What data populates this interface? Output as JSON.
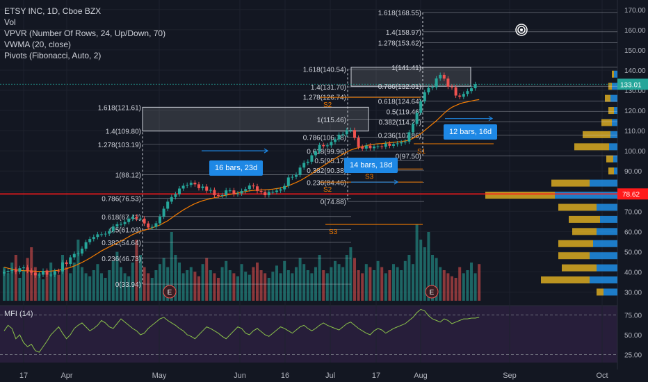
{
  "legend": {
    "title": "ETSY INC, 1D, Cboe BZX",
    "vol": "Vol",
    "vpvr": "VPVR (Number Of Rows, 24, Up/Down, 70)",
    "vwma": "VWMA (20, close)",
    "pivots": "Pivots (Fibonacci, Auto, 2)"
  },
  "mfi_label": "MFI (14)",
  "colors": {
    "bg": "#131722",
    "up": "#26a69a",
    "down": "#ef5350",
    "vwma": "#f57c00",
    "fib": "#d1d4dc",
    "pivot": "#f57c00",
    "redline": "#ff1a1a",
    "blue": "#1e88e5",
    "vpvr_up": "#2196f3",
    "vpvr_down": "#e6b422",
    "mfi": "#8bc34a",
    "grid": "#1e222d"
  },
  "chart_data": {
    "type": "candlestick",
    "price_axis": {
      "ticks": [
        "170.00",
        "160.00",
        "150.00",
        "140.00",
        "130.00",
        "120.00",
        "110.00",
        "100.00",
        "90.00",
        "80.00",
        "70.00",
        "60.00",
        "50.00",
        "40.00",
        "30.00"
      ],
      "range": [
        25,
        172
      ],
      "current_price": "133.01",
      "red_line_price": "78.62"
    },
    "mfi_axis": {
      "ticks": [
        "75.00",
        "50.00",
        "25.00"
      ],
      "range": [
        15,
        85
      ]
    },
    "x_axis_labels": [
      "17",
      "Apr",
      "May",
      "Jun",
      "16",
      "Jul",
      "17",
      "Aug",
      "Sep",
      "Oct"
    ],
    "prices": [
      40,
      40.5,
      41,
      40,
      41.8,
      42.2,
      40.6,
      39.6,
      38.3,
      38.6,
      40.5,
      38.6,
      38.6,
      40.4,
      40.2,
      44.7,
      43.9,
      47.2,
      48.9,
      49.1,
      51.5,
      54.7,
      56.3,
      57.3,
      58.6,
      58.6,
      58.9,
      60.2,
      62.5,
      63.6,
      63.7,
      64.7,
      66.4,
      67.3,
      66.4,
      66.4,
      64,
      62,
      62.3,
      64.1,
      67.4,
      71.3,
      74.8,
      77.1,
      78.5,
      81.3,
      82.7,
      83.1,
      84.2,
      83.4,
      81.5,
      82.3,
      80.2,
      80.6,
      78,
      77.8,
      78,
      80.4,
      80.4,
      78.5,
      78.9,
      80.1,
      81,
      82.8,
      82.4,
      80.1,
      79.6,
      78,
      79.6,
      79.6,
      80.3,
      80.9,
      82.6,
      86.8,
      87.1,
      88.1,
      91.7,
      94,
      94.6,
      97.8,
      99.7,
      102.8,
      102.3,
      102.7,
      104.4,
      105.7,
      108,
      108.2,
      110.2,
      110.3,
      106.4,
      101.9,
      101.1,
      102.6,
      101.3,
      102.1,
      102.2,
      102,
      103.6,
      102.5,
      103.3,
      103.7,
      104.2,
      104.6,
      109.2,
      113.3,
      118.8,
      124.6,
      129,
      131.2,
      131.5,
      135.9,
      137.6,
      135.8,
      131.8,
      131.5,
      127.4,
      126.8,
      128.2,
      129.6,
      131,
      133
    ],
    "volume": [
      22,
      18,
      25,
      30,
      15,
      20,
      28,
      35,
      22,
      18,
      14,
      20,
      25,
      19,
      17,
      30,
      22,
      18,
      25,
      40,
      22,
      18,
      16,
      20,
      24,
      18,
      15,
      20,
      26,
      32,
      22,
      18,
      16,
      25,
      40,
      30,
      22,
      18,
      15,
      20,
      24,
      28,
      22,
      45,
      30,
      25,
      18,
      20,
      22,
      19,
      16,
      24,
      28,
      20,
      18,
      15,
      22,
      26,
      20,
      18,
      16,
      24,
      19,
      17,
      22,
      25,
      20,
      18,
      15,
      19,
      23,
      18,
      26,
      20,
      18,
      22,
      28,
      24,
      20,
      18,
      22,
      30,
      20,
      18,
      22,
      26,
      24,
      22,
      30,
      35,
      28,
      20,
      18,
      24,
      22,
      20,
      26,
      22,
      18,
      20,
      24,
      22,
      20,
      26,
      30,
      24,
      50,
      40,
      35,
      45,
      30,
      28,
      22,
      20,
      18,
      16,
      15,
      22,
      18,
      20,
      25,
      18,
      24
    ],
    "mfi": [
      55,
      62,
      58,
      45,
      50,
      40,
      35,
      38,
      30,
      28,
      35,
      42,
      50,
      55,
      60,
      52,
      45,
      50,
      58,
      62,
      65,
      60,
      55,
      58,
      62,
      68,
      65,
      60,
      58,
      64,
      70,
      66,
      62,
      58,
      55,
      50,
      52,
      58,
      62,
      66,
      70,
      72,
      68,
      65,
      62,
      58,
      55,
      50,
      48,
      45,
      50,
      55,
      60,
      58,
      55,
      52,
      48,
      45,
      50,
      55,
      60,
      58,
      52,
      50,
      55,
      58,
      54,
      50,
      48,
      52,
      56,
      60,
      58,
      55,
      52,
      56,
      60,
      62,
      58,
      55,
      58,
      62,
      65,
      62,
      60,
      58,
      56,
      60,
      64,
      66,
      62,
      58,
      55,
      52,
      50,
      55,
      58,
      56,
      52,
      55,
      58,
      60,
      62,
      64,
      68,
      72,
      78,
      82,
      80,
      74,
      70,
      68,
      66,
      70,
      68,
      64,
      66,
      68,
      70,
      70,
      71,
      71,
      72
    ],
    "vwma": [
      42.3,
      41.8,
      41.4,
      41,
      40.8,
      40.6,
      40.5,
      40.5,
      40.3,
      40.3,
      40.3,
      40.2,
      40.4,
      40.6,
      40.8,
      41.2,
      41.6,
      42.2,
      42.9,
      43.8,
      44.7,
      45.7,
      46.8,
      48,
      49.2,
      50.4,
      51.4,
      52.4,
      53.3,
      54.3,
      55.3,
      56.3,
      57.4,
      58.5,
      59.3,
      60.1,
      60.6,
      61.2,
      61.8,
      62.5,
      63.2,
      64.3,
      65.3,
      66.7,
      68.1,
      69.4,
      70.7,
      71.8,
      72.9,
      73.8,
      74.6,
      75.3,
      75.8,
      76.3,
      76.7,
      77.1,
      77.6,
      78,
      78.4,
      78.7,
      79.1,
      79.5,
      79.8,
      80.2,
      80.4,
      80.5,
      80.6,
      80.7,
      80.8,
      81,
      81.3,
      81.6,
      82,
      82.7,
      83.5,
      84.3,
      85.2,
      86.3,
      87.5,
      88.7,
      90,
      91.4,
      92.6,
      93.8,
      95,
      96.2,
      97.3,
      98.4,
      99.4,
      100.4,
      101,
      101.6,
      102.1,
      102.6,
      103,
      103.3,
      103.5,
      103.6,
      103.8,
      104,
      104.2,
      104.4,
      104.6,
      104.9,
      105.3,
      106.2,
      107.2,
      108.5,
      110.1,
      111.7,
      113.3,
      114.9,
      116.7,
      118.6,
      120.3,
      121.6,
      122.5,
      123.3,
      123.9,
      124.3,
      124.7,
      125.1,
      125.4
    ],
    "vpvr": [
      {
        "price": "30.00",
        "up": 0.2,
        "down": 0.1
      },
      {
        "price": "36.00",
        "up": 0.4,
        "down": 0.7
      },
      {
        "price": "42.00",
        "up": 0.3,
        "down": 0.5
      },
      {
        "price": "48.00",
        "up": 0.4,
        "down": 0.45
      },
      {
        "price": "54.00",
        "up": 0.35,
        "down": 0.5
      },
      {
        "price": "60.00",
        "up": 0.3,
        "down": 0.35
      },
      {
        "price": "66.00",
        "up": 0.25,
        "down": 0.45
      },
      {
        "price": "72.00",
        "up": 0.3,
        "down": 0.55
      },
      {
        "price": "78.00",
        "up": 0.9,
        "down": 1
      },
      {
        "price": "84.00",
        "up": 0.4,
        "down": 0.55
      },
      {
        "price": "90.00",
        "up": 0.05,
        "down": 0.08
      },
      {
        "price": "96.00",
        "up": 0.06,
        "down": 0.1
      },
      {
        "price": "102.00",
        "up": 0.12,
        "down": 0.5
      },
      {
        "price": "108.00",
        "up": 0.1,
        "down": 0.4
      },
      {
        "price": "114.00",
        "up": 0.08,
        "down": 0.15
      },
      {
        "price": "120.00",
        "up": 0.05,
        "down": 0.08
      },
      {
        "price": "126.00",
        "up": 0.1,
        "down": 0.08
      },
      {
        "price": "132.00",
        "up": 0.08,
        "down": 0.05
      },
      {
        "price": "138.00",
        "up": 0.05,
        "down": 0.03
      }
    ],
    "fib_sets": [
      {
        "levels": [
          {
            "label": "1.618(121.61)",
            "price": 121.61
          },
          {
            "label": "1.4(109.80)",
            "price": 109.8
          },
          {
            "label": "1.278(103.19)",
            "price": 103.19
          },
          {
            "label": "1(88.12)",
            "price": 88.12
          },
          {
            "label": "0.786(76.53)",
            "price": 76.53
          },
          {
            "label": "0.618(67.42)",
            "price": 67.42
          },
          {
            "label": "0.5(61.03)",
            "price": 61.03
          },
          {
            "label": "0.382(54.64)",
            "price": 54.64
          },
          {
            "label": "0.236(46.73)",
            "price": 46.73
          },
          {
            "label": "0(33.94)",
            "price": 33.94
          }
        ]
      },
      {
        "levels": [
          {
            "label": "1.618(140.54)",
            "price": 140.54
          },
          {
            "label": "1.4(131.70)",
            "price": 131.7
          },
          {
            "label": "1.278(126.74)",
            "price": 126.74
          },
          {
            "label": "1(115.46)",
            "price": 115.46
          },
          {
            "label": "0.786(106.78)",
            "price": 106.78
          },
          {
            "label": "0.618(99.96)",
            "price": 99.96
          },
          {
            "label": "0.5(95.17)",
            "price": 95.17
          },
          {
            "label": "0.382(90.38)",
            "price": 90.38
          },
          {
            "label": "0.236(84.46)",
            "price": 84.46
          },
          {
            "label": "0(74.88)",
            "price": 74.88
          }
        ]
      },
      {
        "levels": [
          {
            "label": "1.618(168.55)",
            "price": 168.55
          },
          {
            "label": "1.4(158.97)",
            "price": 158.97
          },
          {
            "label": "1.278(153.62)",
            "price": 153.62
          },
          {
            "label": "1(141.41)",
            "price": 141.41
          },
          {
            "label": "0.786(132.01)",
            "price": 132.01
          },
          {
            "label": "0.618(124.64)",
            "price": 124.64
          },
          {
            "label": "0.5(119.46)",
            "price": 119.46
          },
          {
            "label": "0.382(114.27)",
            "price": 114.27
          },
          {
            "label": "0.236(107.86)",
            "price": 107.86
          },
          {
            "label": "0(97.50)",
            "price": 97.5
          }
        ]
      }
    ],
    "pivot_labels": [
      {
        "label": "S3",
        "price": 63.5
      },
      {
        "label": "S3",
        "price": 91
      },
      {
        "label": "S1",
        "price": 103.5
      },
      {
        "label": "S2",
        "price": 126.5
      },
      {
        "label": "S2",
        "price": 84.5
      }
    ],
    "measures": [
      {
        "label": "16 bars, 23d"
      },
      {
        "label": "14 bars, 18d"
      },
      {
        "label": "12 bars, 16d"
      }
    ],
    "earnings_marker": "E"
  }
}
